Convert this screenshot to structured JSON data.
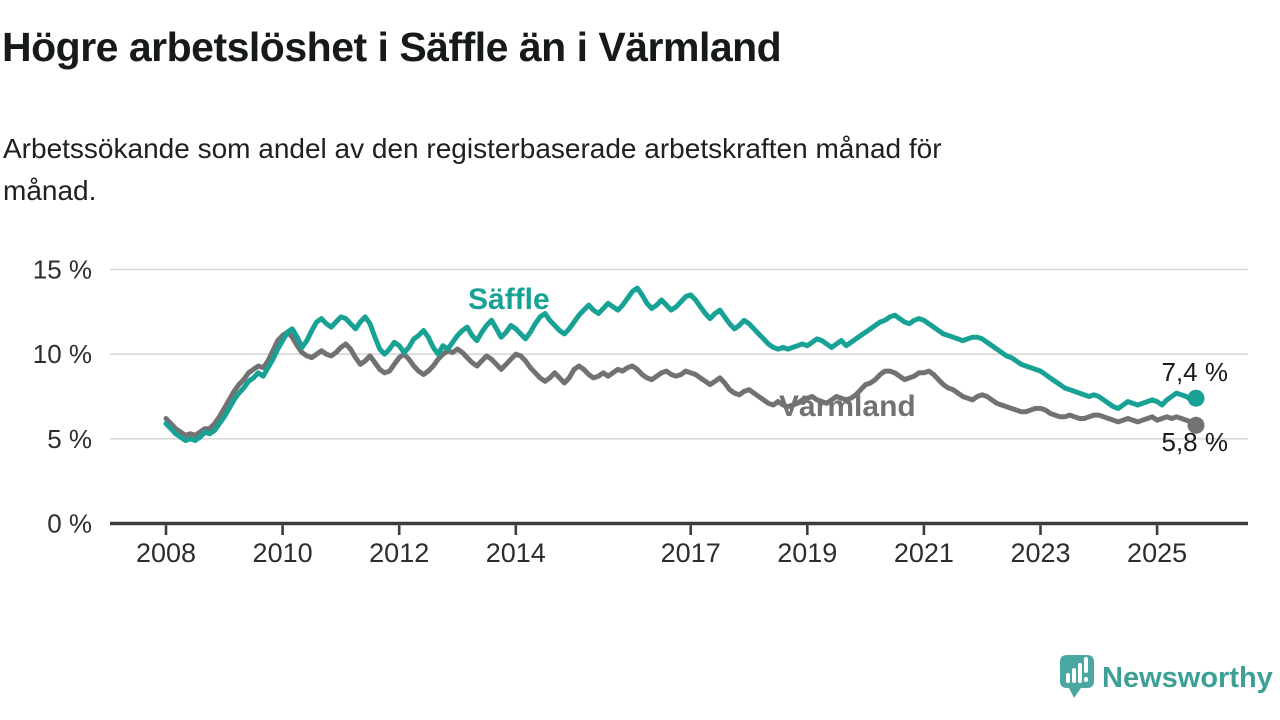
{
  "header": {
    "title": "Högre arbetslöshet i Säffle än i Värmland",
    "subtitle_lines": [
      "Arbetssökande som andel av den registerbaserade arbetskraften månad för",
      "månad."
    ]
  },
  "chart_data": {
    "type": "line",
    "title": "Högre arbetslöshet i Säffle än i Värmland",
    "subtitle": "Arbetssökande som andel av den registerbaserade arbetskraften månad för månad.",
    "unit": "%",
    "frequency": "monthly",
    "x_start": {
      "year": 2008,
      "month": 1
    },
    "x_end": {
      "year": 2025,
      "month": 9
    },
    "ylim": [
      0,
      15.5
    ],
    "grid": "horizontal-only",
    "legend_position": "inline-labels",
    "x_ticks": [
      2008,
      2010,
      2012,
      2014,
      2017,
      2019,
      2021,
      2023,
      2025
    ],
    "y_ticks": [
      {
        "value": 0,
        "label": "0 %"
      },
      {
        "value": 5,
        "label": "5 %"
      },
      {
        "value": 10,
        "label": "10 %"
      },
      {
        "value": 15,
        "label": "15 %"
      }
    ],
    "series": [
      {
        "name": "Säffle",
        "color": "#18a296",
        "end_label": "7,4 %",
        "last_value": 7.4,
        "values": [
          5.9,
          5.6,
          5.3,
          5.1,
          4.9,
          5.0,
          4.9,
          5.1,
          5.4,
          5.3,
          5.5,
          5.9,
          6.3,
          6.8,
          7.3,
          7.7,
          8.0,
          8.4,
          8.6,
          8.9,
          8.7,
          9.2,
          9.7,
          10.3,
          10.8,
          11.3,
          11.5,
          11.0,
          10.4,
          10.8,
          11.4,
          11.9,
          12.1,
          11.8,
          11.6,
          11.9,
          12.2,
          12.1,
          11.8,
          11.5,
          11.9,
          12.2,
          11.8,
          11.0,
          10.3,
          10.0,
          10.3,
          10.7,
          10.5,
          10.1,
          10.4,
          10.9,
          11.1,
          11.4,
          11.0,
          10.4,
          10.0,
          10.5,
          10.3,
          10.7,
          11.1,
          11.4,
          11.6,
          11.1,
          10.8,
          11.3,
          11.7,
          12.0,
          11.5,
          11.0,
          11.3,
          11.7,
          11.5,
          11.2,
          10.9,
          11.3,
          11.8,
          12.2,
          12.4,
          12.0,
          11.7,
          11.4,
          11.2,
          11.5,
          11.9,
          12.3,
          12.6,
          12.9,
          12.6,
          12.4,
          12.7,
          13.0,
          12.8,
          12.6,
          12.9,
          13.3,
          13.7,
          13.9,
          13.5,
          13.0,
          12.7,
          12.9,
          13.2,
          12.9,
          12.6,
          12.8,
          13.1,
          13.4,
          13.5,
          13.2,
          12.8,
          12.4,
          12.1,
          12.4,
          12.6,
          12.2,
          11.8,
          11.5,
          11.7,
          12.0,
          11.8,
          11.5,
          11.2,
          10.9,
          10.6,
          10.4,
          10.3,
          10.4,
          10.3,
          10.4,
          10.5,
          10.6,
          10.5,
          10.7,
          10.9,
          10.8,
          10.6,
          10.4,
          10.6,
          10.8,
          10.5,
          10.7,
          10.9,
          11.1,
          11.3,
          11.5,
          11.7,
          11.9,
          12.0,
          12.2,
          12.3,
          12.1,
          11.9,
          11.8,
          12.0,
          12.1,
          12.0,
          11.8,
          11.6,
          11.4,
          11.2,
          11.1,
          11.0,
          10.9,
          10.8,
          10.9,
          11.0,
          11.0,
          10.9,
          10.7,
          10.5,
          10.3,
          10.1,
          9.9,
          9.8,
          9.6,
          9.4,
          9.3,
          9.2,
          9.1,
          9.0,
          8.8,
          8.6,
          8.4,
          8.2,
          8.0,
          7.9,
          7.8,
          7.7,
          7.6,
          7.5,
          7.6,
          7.5,
          7.3,
          7.1,
          6.9,
          6.8,
          7.0,
          7.2,
          7.1,
          7.0,
          7.1,
          7.2,
          7.3,
          7.2,
          7.0,
          7.3,
          7.5,
          7.7,
          7.6,
          7.5,
          7.3,
          7.4
        ]
      },
      {
        "name": "Värmland",
        "color": "#727272",
        "end_label": "5,8 %",
        "last_value": 5.8,
        "values": [
          6.2,
          5.9,
          5.6,
          5.4,
          5.2,
          5.3,
          5.2,
          5.4,
          5.6,
          5.6,
          5.9,
          6.3,
          6.8,
          7.3,
          7.8,
          8.2,
          8.5,
          8.9,
          9.1,
          9.3,
          9.2,
          9.6,
          10.2,
          10.8,
          11.1,
          11.3,
          11.0,
          10.5,
          10.1,
          9.9,
          9.8,
          10.0,
          10.2,
          10.0,
          9.9,
          10.1,
          10.4,
          10.6,
          10.3,
          9.8,
          9.4,
          9.6,
          9.9,
          9.5,
          9.1,
          8.9,
          9.0,
          9.4,
          9.8,
          10.0,
          9.7,
          9.3,
          9.0,
          8.8,
          9.0,
          9.3,
          9.7,
          10.0,
          10.2,
          10.1,
          10.3,
          10.1,
          9.8,
          9.5,
          9.3,
          9.6,
          9.9,
          9.7,
          9.4,
          9.1,
          9.4,
          9.7,
          10.0,
          9.9,
          9.6,
          9.2,
          8.9,
          8.6,
          8.4,
          8.6,
          8.9,
          8.6,
          8.3,
          8.6,
          9.1,
          9.3,
          9.1,
          8.8,
          8.6,
          8.7,
          8.9,
          8.7,
          8.9,
          9.1,
          9.0,
          9.2,
          9.3,
          9.1,
          8.8,
          8.6,
          8.5,
          8.7,
          8.9,
          9.0,
          8.8,
          8.7,
          8.8,
          9.0,
          8.9,
          8.8,
          8.6,
          8.4,
          8.2,
          8.4,
          8.6,
          8.3,
          7.9,
          7.7,
          7.6,
          7.8,
          7.9,
          7.7,
          7.5,
          7.3,
          7.1,
          7.0,
          7.2,
          7.0,
          6.9,
          7.0,
          7.1,
          7.3,
          7.4,
          7.5,
          7.3,
          7.2,
          7.1,
          7.3,
          7.5,
          7.4,
          7.3,
          7.4,
          7.6,
          7.9,
          8.2,
          8.3,
          8.5,
          8.8,
          9.0,
          9.0,
          8.9,
          8.7,
          8.5,
          8.6,
          8.7,
          8.9,
          8.9,
          9.0,
          8.8,
          8.5,
          8.2,
          8.0,
          7.9,
          7.7,
          7.5,
          7.4,
          7.3,
          7.5,
          7.6,
          7.5,
          7.3,
          7.1,
          7.0,
          6.9,
          6.8,
          6.7,
          6.6,
          6.6,
          6.7,
          6.8,
          6.8,
          6.7,
          6.5,
          6.4,
          6.3,
          6.3,
          6.4,
          6.3,
          6.2,
          6.2,
          6.3,
          6.4,
          6.4,
          6.3,
          6.2,
          6.1,
          6.0,
          6.1,
          6.2,
          6.1,
          6.0,
          6.1,
          6.2,
          6.3,
          6.1,
          6.2,
          6.3,
          6.2,
          6.3,
          6.2,
          6.1,
          6.0,
          5.8
        ]
      }
    ]
  },
  "branding": {
    "name": "Newsworthy",
    "logo_icon": "newsworthy-speech-bubble-bar-chart-icon",
    "bubble_color": "#4ba8a0",
    "text_color": "#3da096"
  }
}
